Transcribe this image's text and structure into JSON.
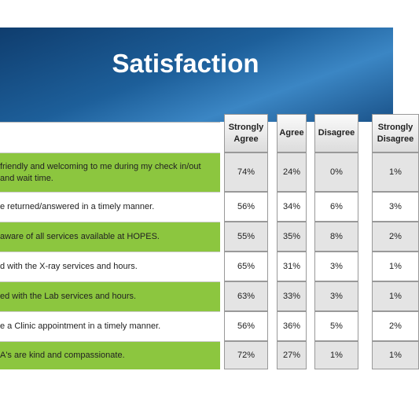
{
  "header": {
    "title": "Satisfaction"
  },
  "table": {
    "columns": [
      "Strongly Agree",
      "Agree",
      "Disagree",
      "Strongly Disagree"
    ],
    "rows": [
      {
        "label": "friendly and welcoming to me during my check in/out and wait time.",
        "values": [
          "74%",
          "24%",
          "0%",
          "1%"
        ]
      },
      {
        "label": "e returned/answered in a timely manner.",
        "values": [
          "56%",
          "34%",
          "6%",
          "3%"
        ]
      },
      {
        "label": "aware of all services available at HOPES.",
        "values": [
          "55%",
          "35%",
          "8%",
          "2%"
        ]
      },
      {
        "label": "d with the X-ray services and hours.",
        "values": [
          "65%",
          "31%",
          "3%",
          "1%"
        ]
      },
      {
        "label": "ed with the Lab services and hours.",
        "values": [
          "63%",
          "33%",
          "3%",
          "1%"
        ]
      },
      {
        "label": "e a Clinic appointment in a timely manner.",
        "values": [
          "56%",
          "36%",
          "5%",
          "2%"
        ]
      },
      {
        "label": "A's are kind and compassionate.",
        "values": [
          "72%",
          "27%",
          "1%",
          "1%"
        ]
      }
    ]
  }
}
